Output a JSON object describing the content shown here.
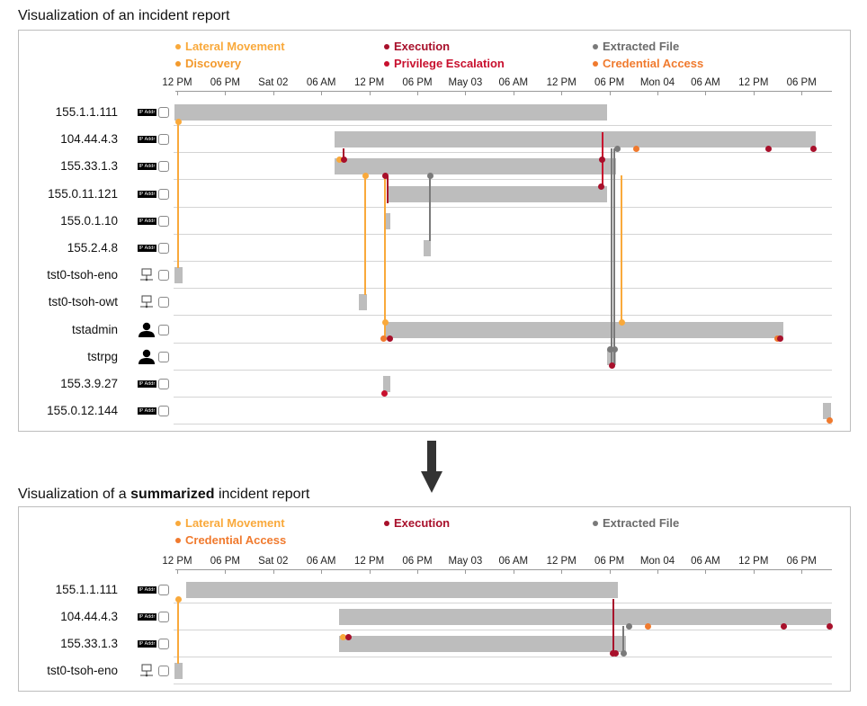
{
  "colors": {
    "lateral_movement": "#f9a93b",
    "discovery": "#f39a2d",
    "execution": "#a8102b",
    "privilege_escalation": "#c8102e",
    "extracted_file": "#7a7a7a",
    "credential_access": "#f07a2e",
    "bar": "#bdbdbd"
  },
  "top": {
    "caption": "Visualization of an incident report",
    "legend": [
      {
        "label": "Lateral Movement",
        "color": "#f9a93b"
      },
      {
        "label": "Execution",
        "color": "#a8102b"
      },
      {
        "label": "Extracted File",
        "color": "#7a7a7a"
      },
      {
        "label": "Discovery",
        "color": "#f39a2d"
      },
      {
        "label": "Privilege Escalation",
        "color": "#c8102e"
      },
      {
        "label": "Credential Access",
        "color": "#f07a2e"
      }
    ],
    "ticks": [
      "12 PM",
      "06 PM",
      "Sat 02",
      "06 AM",
      "12 PM",
      "06 PM",
      "May 03",
      "06 AM",
      "12 PM",
      "06 PM",
      "Mon 04",
      "06 AM",
      "12 PM",
      "06 PM"
    ],
    "rows": [
      {
        "label": "155.1.1.111",
        "icon": "ip"
      },
      {
        "label": "104.44.4.3",
        "icon": "ip"
      },
      {
        "label": "155.33.1.3",
        "icon": "ip"
      },
      {
        "label": "155.0.11.121",
        "icon": "ip"
      },
      {
        "label": "155.0.1.10",
        "icon": "ip"
      },
      {
        "label": "155.2.4.8",
        "icon": "ip"
      },
      {
        "label": "tst0-tsoh-eno",
        "icon": "host"
      },
      {
        "label": "tst0-tsoh-owt",
        "icon": "host"
      },
      {
        "label": "tstadmin",
        "icon": "user"
      },
      {
        "label": "tstrpg",
        "icon": "user"
      },
      {
        "label": "155.3.9.27",
        "icon": "ip"
      },
      {
        "label": "155.0.12.144",
        "icon": "ip"
      }
    ]
  },
  "bottom": {
    "caption_prefix": "Visualization of a ",
    "caption_bold": "summarized",
    "caption_suffix": " incident report",
    "legend": [
      {
        "label": "Lateral Movement",
        "color": "#f9a93b"
      },
      {
        "label": "Execution",
        "color": "#a8102b"
      },
      {
        "label": "Extracted File",
        "color": "#7a7a7a"
      },
      {
        "label": "Credential Access",
        "color": "#f07a2e"
      }
    ],
    "ticks": [
      "12 PM",
      "06 PM",
      "Sat 02",
      "06 AM",
      "12 PM",
      "06 PM",
      "May 03",
      "06 AM",
      "12 PM",
      "06 PM",
      "Mon 04",
      "06 AM",
      "12 PM",
      "06 PM"
    ],
    "rows": [
      {
        "label": "155.1.1.111",
        "icon": "ip"
      },
      {
        "label": "104.44.4.3",
        "icon": "ip"
      },
      {
        "label": "155.33.1.3",
        "icon": "ip"
      },
      {
        "label": "tst0-tsoh-eno",
        "icon": "host"
      }
    ]
  },
  "ip_badge_text": "IP Addr"
}
